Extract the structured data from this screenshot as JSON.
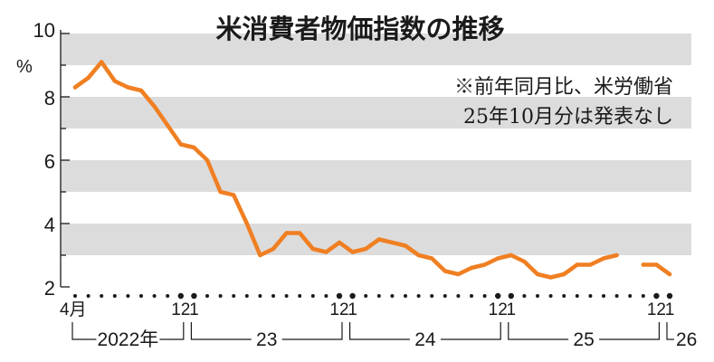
{
  "chart_data": {
    "type": "line",
    "title": "米消費者物価指数の推移",
    "notes": [
      "※前年同月比、米労働省",
      "25年10月分は発表なし"
    ],
    "ylabel": "%",
    "ylim": [
      2,
      10
    ],
    "yticks": [
      "2",
      "4",
      "6",
      "8",
      "10"
    ],
    "band_colors": [
      "#dcdcdc",
      "#ffffff"
    ],
    "line_color": "#f07f22",
    "x_labels": {
      "start_month": "4月",
      "month_labels": [
        {
          "month": "2022-12",
          "text": "12"
        },
        {
          "month": "2023-01",
          "text": "1"
        },
        {
          "month": "2023-12",
          "text": "12"
        },
        {
          "month": "2024-01",
          "text": "1"
        },
        {
          "month": "2024-12",
          "text": "12"
        },
        {
          "month": "2025-01",
          "text": "1"
        },
        {
          "month": "2025-12",
          "text": "12"
        },
        {
          "month": "2026-01",
          "text": "1"
        }
      ],
      "years": [
        {
          "text": "2022年",
          "start": "2022-04",
          "end": "2022-12"
        },
        {
          "text": "23",
          "start": "2023-01",
          "end": "2023-12"
        },
        {
          "text": "24",
          "start": "2024-01",
          "end": "2024-12"
        },
        {
          "text": "25",
          "start": "2025-01",
          "end": "2025-12"
        },
        {
          "text": "26",
          "start": "2026-01",
          "end": "2026-01"
        }
      ]
    },
    "x": [
      "2022-04",
      "2022-05",
      "2022-06",
      "2022-07",
      "2022-08",
      "2022-09",
      "2022-10",
      "2022-11",
      "2022-12",
      "2023-01",
      "2023-02",
      "2023-03",
      "2023-04",
      "2023-05",
      "2023-06",
      "2023-07",
      "2023-08",
      "2023-09",
      "2023-10",
      "2023-11",
      "2023-12",
      "2024-01",
      "2024-02",
      "2024-03",
      "2024-04",
      "2024-05",
      "2024-06",
      "2024-07",
      "2024-08",
      "2024-09",
      "2024-10",
      "2024-11",
      "2024-12",
      "2025-01",
      "2025-02",
      "2025-03",
      "2025-04",
      "2025-05",
      "2025-06",
      "2025-07",
      "2025-08",
      "2025-09",
      "2025-10",
      "2025-11",
      "2025-12",
      "2026-01"
    ],
    "values": [
      8.3,
      8.6,
      9.1,
      8.5,
      8.3,
      8.2,
      7.7,
      7.1,
      6.5,
      6.4,
      6.0,
      5.0,
      4.9,
      4.0,
      3.0,
      3.2,
      3.7,
      3.7,
      3.2,
      3.1,
      3.4,
      3.1,
      3.2,
      3.5,
      3.4,
      3.3,
      3.0,
      2.9,
      2.5,
      2.4,
      2.6,
      2.7,
      2.9,
      3.0,
      2.8,
      2.4,
      2.3,
      2.4,
      2.7,
      2.7,
      2.9,
      3.0,
      null,
      2.7,
      2.7,
      2.4
    ]
  }
}
